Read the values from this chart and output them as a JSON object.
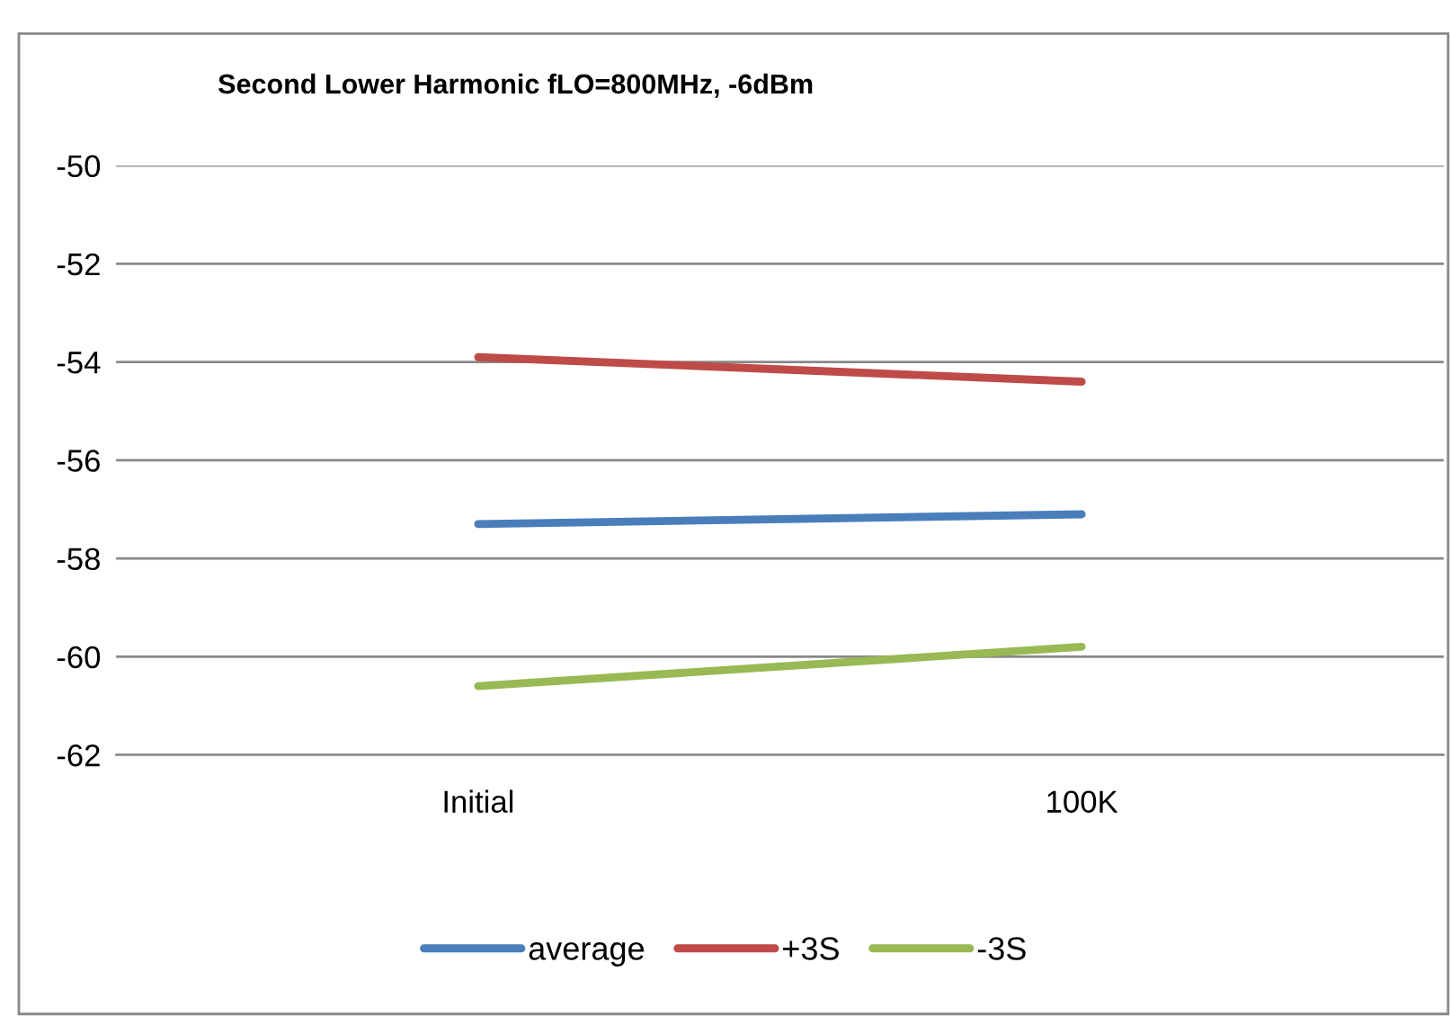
{
  "chart_data": {
    "type": "line",
    "title": "Second Lower Harmonic fLO=800MHz, -6dBm",
    "categories": [
      "Initial",
      "100K"
    ],
    "series": [
      {
        "name": "average",
        "color": "#4a7ebb",
        "values": [
          -57.3,
          -57.1
        ]
      },
      {
        "name": "+3S",
        "color": "#be4b48",
        "values": [
          -53.9,
          -54.4
        ]
      },
      {
        "name": "-3S",
        "color": "#98b954",
        "values": [
          -60.6,
          -59.8
        ]
      }
    ],
    "ylim": [
      -62,
      -50
    ],
    "yticks": [
      -62,
      -60,
      -58,
      -56,
      -54,
      -52,
      -50
    ],
    "grid": "y",
    "legend": "bottom",
    "marker": "none",
    "line_style": "solid"
  }
}
